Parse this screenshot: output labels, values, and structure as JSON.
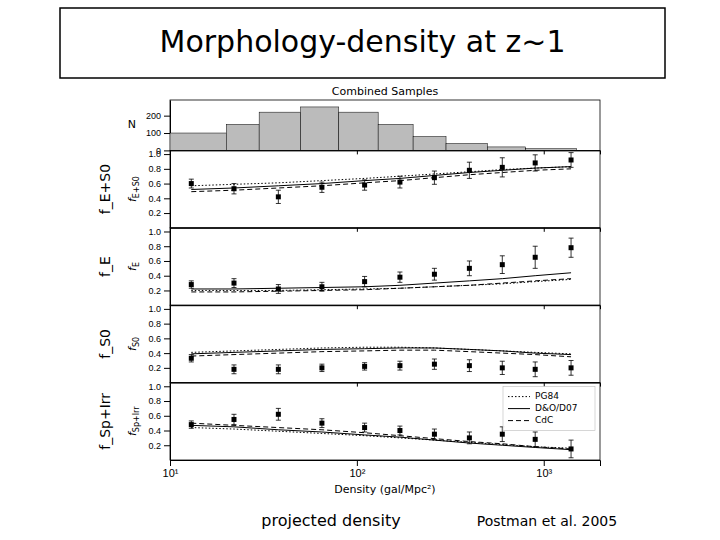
{
  "title": "Morphology-density at z~1",
  "xlabel": "projected density",
  "annotations": [
    "Postman et al. 2005"
  ],
  "chart_data": [
    {
      "type": "histogram",
      "title": "Combined Samples",
      "ylabel": "N",
      "bins": [
        10,
        20,
        30,
        50,
        80,
        130,
        200,
        300,
        500,
        800,
        1500
      ],
      "values": [
        100,
        150,
        220,
        250,
        220,
        150,
        80,
        40,
        20,
        10
      ],
      "color": "#bbbbbb",
      "log": "x",
      "xlim": [
        10,
        2000
      ],
      "xticks": [
        10,
        100,
        1000
      ],
      "ylim": [
        0,
        290
      ],
      "yticks": [
        0,
        100,
        200
      ],
      "tick_labels": "y"
    },
    {
      "type": "line",
      "ylabel": "fE+S0",
      "annotations": [
        "f_E+S0"
      ],
      "x": [
        13,
        22,
        38,
        65,
        110,
        170,
        260,
        400,
        600,
        900,
        1400
      ],
      "log": "x",
      "xlim": [
        10,
        2000
      ],
      "xticks": [
        10,
        100,
        1000
      ],
      "ylim": [
        0,
        1.05
      ],
      "yticks": [
        0.2,
        0.4,
        0.6,
        0.8,
        {
          "value": 1.0,
          "label": "1.0"
        }
      ],
      "tick_labels": "y",
      "series": [
        {
          "type": "line",
          "line_style": "dotted",
          "color": "#000000",
          "values": [
            0.57,
            0.59,
            0.61,
            0.64,
            0.67,
            0.7,
            0.73,
            0.76,
            0.79,
            0.81,
            0.83
          ]
        },
        {
          "type": "line",
          "line_style": "solid",
          "color": "#000000",
          "values": [
            0.52,
            0.54,
            0.57,
            0.6,
            0.64,
            0.67,
            0.71,
            0.75,
            0.78,
            0.81,
            0.83
          ]
        },
        {
          "type": "line",
          "line_style": "dashed",
          "color": "#000000",
          "values": [
            0.49,
            0.51,
            0.54,
            0.57,
            0.61,
            0.64,
            0.68,
            0.72,
            0.75,
            0.78,
            0.8
          ]
        },
        {
          "type": "scatter",
          "marker": "square",
          "color": "#000000",
          "values": [
            0.6,
            0.53,
            0.42,
            0.55,
            0.58,
            0.62,
            0.68,
            0.78,
            0.82,
            0.88,
            0.92
          ],
          "errors": [
            0.06,
            0.07,
            0.09,
            0.07,
            0.07,
            0.08,
            0.09,
            0.11,
            0.13,
            0.11,
            0.1
          ]
        }
      ]
    },
    {
      "type": "line",
      "ylabel": "fE",
      "annotations": [
        "f_E"
      ],
      "x": [
        13,
        22,
        38,
        65,
        110,
        170,
        260,
        400,
        600,
        900,
        1400
      ],
      "log": "x",
      "xlim": [
        10,
        2000
      ],
      "xticks": [
        10,
        100,
        1000
      ],
      "ylim": [
        0,
        1.05
      ],
      "yticks": [
        0.2,
        0.4,
        0.6,
        0.8,
        {
          "value": 1.0,
          "label": "1.0"
        }
      ],
      "tick_labels": "y",
      "series": [
        {
          "type": "line",
          "line_style": "dotted",
          "color": "#000000",
          "values": [
            0.2,
            0.2,
            0.2,
            0.21,
            0.22,
            0.23,
            0.25,
            0.27,
            0.29,
            0.32,
            0.35
          ]
        },
        {
          "type": "line",
          "line_style": "solid",
          "color": "#000000",
          "values": [
            0.22,
            0.22,
            0.23,
            0.24,
            0.25,
            0.27,
            0.3,
            0.33,
            0.36,
            0.4,
            0.44
          ]
        },
        {
          "type": "line",
          "line_style": "dashed",
          "color": "#000000",
          "values": [
            0.18,
            0.18,
            0.19,
            0.2,
            0.21,
            0.23,
            0.25,
            0.27,
            0.3,
            0.33,
            0.36
          ]
        },
        {
          "type": "scatter",
          "marker": "square",
          "color": "#000000",
          "values": [
            0.28,
            0.3,
            0.22,
            0.25,
            0.32,
            0.38,
            0.42,
            0.5,
            0.55,
            0.65,
            0.78
          ],
          "errors": [
            0.05,
            0.06,
            0.06,
            0.06,
            0.07,
            0.07,
            0.08,
            0.1,
            0.12,
            0.15,
            0.13
          ]
        }
      ]
    },
    {
      "type": "line",
      "ylabel": "fS0",
      "annotations": [
        "f_S0"
      ],
      "x": [
        13,
        22,
        38,
        65,
        110,
        170,
        260,
        400,
        600,
        900,
        1400
      ],
      "log": "x",
      "xlim": [
        10,
        2000
      ],
      "xticks": [
        10,
        100,
        1000
      ],
      "ylim": [
        0,
        1.05
      ],
      "yticks": [
        0.2,
        0.4,
        0.6,
        0.8,
        {
          "value": 1.0,
          "label": "1.0"
        }
      ],
      "tick_labels": "y",
      "series": [
        {
          "type": "line",
          "line_style": "dotted",
          "color": "#000000",
          "values": [
            0.41,
            0.43,
            0.45,
            0.47,
            0.48,
            0.48,
            0.47,
            0.45,
            0.43,
            0.41,
            0.39
          ]
        },
        {
          "type": "line",
          "line_style": "solid",
          "color": "#000000",
          "values": [
            0.39,
            0.41,
            0.43,
            0.45,
            0.46,
            0.47,
            0.47,
            0.45,
            0.43,
            0.4,
            0.38
          ]
        },
        {
          "type": "line",
          "line_style": "dashed",
          "color": "#000000",
          "values": [
            0.36,
            0.38,
            0.4,
            0.42,
            0.43,
            0.44,
            0.44,
            0.42,
            0.4,
            0.38,
            0.35
          ]
        },
        {
          "type": "scatter",
          "marker": "square",
          "color": "#000000",
          "values": [
            0.33,
            0.18,
            0.18,
            0.2,
            0.22,
            0.23,
            0.25,
            0.23,
            0.2,
            0.18,
            0.2
          ],
          "errors": [
            0.05,
            0.06,
            0.06,
            0.05,
            0.05,
            0.06,
            0.07,
            0.08,
            0.09,
            0.1,
            0.1
          ]
        }
      ]
    },
    {
      "type": "line",
      "ylabel": "fSp+Irr",
      "annotations": [
        "f_Sp+Irr"
      ],
      "xlabel": "Density (gal/Mpc²)",
      "x": [
        13,
        22,
        38,
        65,
        110,
        170,
        260,
        400,
        600,
        900,
        1400
      ],
      "log": "x",
      "xlim": [
        10,
        2000
      ],
      "xticks": [
        {
          "value": 10,
          "label": "10¹"
        },
        {
          "value": 100,
          "label": "10²"
        },
        {
          "value": 1000,
          "label": "10³"
        }
      ],
      "ylim": [
        0,
        1.05
      ],
      "yticks": [
        0.2,
        0.4,
        0.6,
        0.8,
        {
          "value": 1.0,
          "label": "1.0"
        }
      ],
      "legend": "upper right",
      "series": [
        {
          "name": "PG84",
          "type": "line",
          "line_style": "dotted",
          "color": "#000000",
          "values": [
            0.44,
            0.42,
            0.39,
            0.36,
            0.33,
            0.3,
            0.27,
            0.24,
            0.21,
            0.18,
            0.16
          ]
        },
        {
          "name": "D&O/D07",
          "type": "line",
          "line_style": "solid",
          "color": "#000000",
          "values": [
            0.47,
            0.45,
            0.41,
            0.38,
            0.34,
            0.31,
            0.27,
            0.23,
            0.2,
            0.17,
            0.14
          ]
        },
        {
          "name": "CdC",
          "type": "line",
          "line_style": "dashed",
          "color": "#000000",
          "values": [
            0.5,
            0.47,
            0.44,
            0.41,
            0.37,
            0.33,
            0.29,
            0.25,
            0.22,
            0.18,
            0.15
          ]
        },
        {
          "type": "scatter",
          "marker": "square",
          "color": "#000000",
          "values": [
            0.48,
            0.55,
            0.62,
            0.5,
            0.44,
            0.4,
            0.35,
            0.3,
            0.35,
            0.28,
            0.15
          ],
          "errors": [
            0.05,
            0.07,
            0.08,
            0.06,
            0.06,
            0.06,
            0.07,
            0.08,
            0.1,
            0.1,
            0.12
          ]
        }
      ]
    }
  ]
}
